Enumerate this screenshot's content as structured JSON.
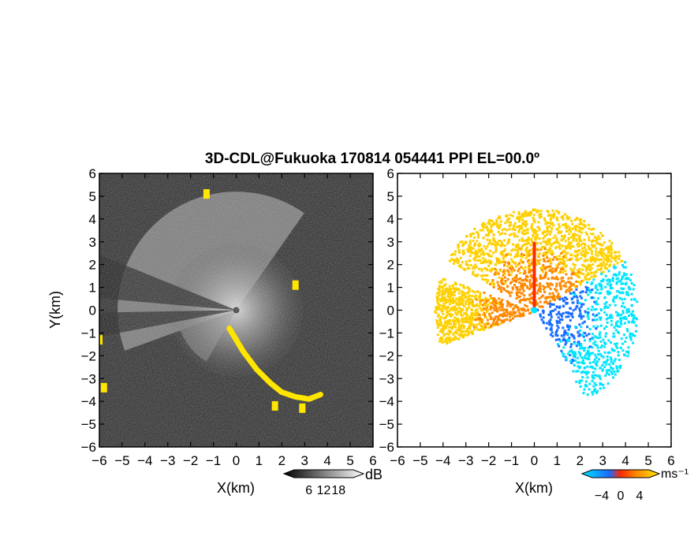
{
  "figure": {
    "title": "3D-CDL@Fukuoka 170814 054441 PPI EL=00.0º"
  },
  "chart_data": [
    {
      "type": "heatmap",
      "name": "reflectivity-ppi",
      "xlabel": "X(km)",
      "ylabel": "Y(km)",
      "xlim": [
        -6,
        6
      ],
      "ylim": [
        -6,
        6
      ],
      "xticks": [
        "−6",
        "−5",
        "−4",
        "−3",
        "−2",
        "−1",
        "0",
        "1",
        "2",
        "3",
        "4",
        "5",
        "6"
      ],
      "yticks": [
        "6",
        "5",
        "4",
        "3",
        "2",
        "1",
        "0",
        "−1",
        "−2",
        "−3",
        "−4",
        "−5",
        "−6"
      ],
      "colorbar": {
        "unit": "dB",
        "ticks": [
          "6",
          "12",
          "18"
        ],
        "range": [
          0,
          24
        ]
      },
      "colors": {
        "background": "#202020",
        "cone": "#cfcfcf",
        "clutter": "#ffe600"
      },
      "bright_sector_deg": [
        55,
        200
      ],
      "dark_wedges_deg": [
        [
          158,
          175
        ],
        [
          181,
          189
        ],
        [
          189,
          191
        ]
      ],
      "clutter_path": [
        [
          -0.3,
          -0.8
        ],
        [
          0.3,
          -1.8
        ],
        [
          0.9,
          -2.6
        ],
        [
          1.5,
          -3.2
        ],
        [
          2.0,
          -3.6
        ],
        [
          2.6,
          -3.8
        ],
        [
          3.2,
          -3.9
        ],
        [
          3.7,
          -3.7
        ]
      ],
      "clutter_spots": [
        [
          -6,
          -1.3
        ],
        [
          -5.8,
          -3.4
        ],
        [
          -1.3,
          5.1
        ],
        [
          2.6,
          1.1
        ],
        [
          1.7,
          -4.2
        ],
        [
          2.9,
          -4.3
        ]
      ]
    },
    {
      "type": "heatmap",
      "name": "doppler-velocity-ppi",
      "xlabel": "X(km)",
      "xlim": [
        -6,
        6
      ],
      "ylim": [
        -6,
        6
      ],
      "xticks": [
        "−6",
        "−5",
        "−4",
        "−3",
        "−2",
        "−1",
        "0",
        "1",
        "2",
        "3",
        "4",
        "5",
        "6"
      ],
      "yticks": [
        "6",
        "5",
        "4",
        "3",
        "2",
        "1",
        "0",
        "−1",
        "−2",
        "−3",
        "−4",
        "−5",
        "−6"
      ],
      "colorbar": {
        "unit": "ms⁻¹",
        "ticks": [
          "−4",
          "0",
          "4"
        ],
        "range": [
          -6,
          6
        ]
      },
      "colors": {
        "receding": "#ff8800",
        "receding_light": "#ffd000",
        "approaching": "#1a6cff",
        "approaching_light": "#00e5ff",
        "edge": "#ff2a00"
      },
      "sectors": [
        {
          "from_deg": 90,
          "to_deg": 150,
          "velocity": 3.0
        },
        {
          "from_deg": 30,
          "to_deg": 90,
          "velocity": 1.5
        },
        {
          "from_deg": -60,
          "to_deg": 30,
          "velocity": -3.0
        },
        {
          "from_deg": 160,
          "to_deg": 200,
          "velocity": 4.0
        }
      ]
    }
  ]
}
